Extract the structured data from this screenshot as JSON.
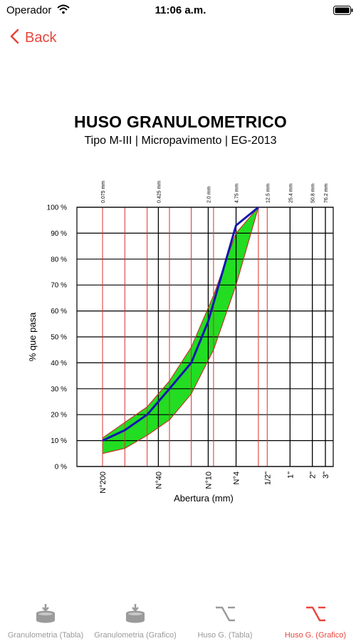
{
  "status_bar": {
    "carrier": "Operador",
    "time": "11:06 a.m."
  },
  "nav": {
    "back_label": "Back"
  },
  "header": {
    "title": "HUSO GRANULOMETRICO",
    "subtitle": "Tipo M-III | Micropavimento | EG-2013"
  },
  "chart_data": {
    "type": "area",
    "title": "HUSO GRANULOMETRICO",
    "subtitle": "Tipo M-III | Micropavimento | EG-2013",
    "xlabel": "Abertura (mm)",
    "ylabel": "% que pasa",
    "x_scale": "log",
    "xlim_mm": [
      0.075,
      76.2
    ],
    "ylim": [
      0,
      100
    ],
    "y_ticks": [
      "0 %",
      "10 %",
      "20 %",
      "30 %",
      "40 %",
      "50 %",
      "60 %",
      "70 %",
      "80 %",
      "90 %",
      "100 %"
    ],
    "y_tick_values": [
      0,
      10,
      20,
      30,
      40,
      50,
      60,
      70,
      80,
      90,
      100
    ],
    "sieve_lines": [
      {
        "mm": 0.075,
        "color": "red"
      },
      {
        "mm": 0.15,
        "color": "red"
      },
      {
        "mm": 0.3,
        "color": "red"
      },
      {
        "mm": 0.425,
        "color": "black"
      },
      {
        "mm": 0.6,
        "color": "red"
      },
      {
        "mm": 1.18,
        "color": "red"
      },
      {
        "mm": 2.0,
        "color": "black"
      },
      {
        "mm": 2.36,
        "color": "red"
      },
      {
        "mm": 4.75,
        "color": "black"
      },
      {
        "mm": 9.5,
        "color": "red"
      },
      {
        "mm": 12.5,
        "color": "red"
      },
      {
        "mm": 25.4,
        "color": "black"
      },
      {
        "mm": 50.8,
        "color": "black"
      },
      {
        "mm": 76.2,
        "color": "black"
      }
    ],
    "top_labels": [
      {
        "mm": 0.075,
        "text": "0.075 mm"
      },
      {
        "mm": 0.425,
        "text": "0.425 mm"
      },
      {
        "mm": 2.0,
        "text": "2.0 mm"
      },
      {
        "mm": 4.75,
        "text": "4.75 mm"
      },
      {
        "mm": 12.5,
        "text": "12.5 mm"
      },
      {
        "mm": 25.4,
        "text": "25.4 mm"
      },
      {
        "mm": 50.8,
        "text": "50.8 mm"
      },
      {
        "mm": 76.2,
        "text": "76.2 mm"
      }
    ],
    "bottom_labels": [
      {
        "mm": 0.075,
        "text": "N°200"
      },
      {
        "mm": 0.425,
        "text": "N°40"
      },
      {
        "mm": 2.0,
        "text": "N°10"
      },
      {
        "mm": 4.75,
        "text": "N°4"
      },
      {
        "mm": 12.5,
        "text": "1/2\""
      },
      {
        "mm": 25.4,
        "text": "1\""
      },
      {
        "mm": 50.8,
        "text": "2\""
      },
      {
        "mm": 76.2,
        "text": "3\""
      }
    ],
    "band_fill": "#22dd22",
    "band_stroke": "#c0392b",
    "series": [
      {
        "color": "#c0392b",
        "points": [
          [
            0.075,
            11
          ],
          [
            0.15,
            17
          ],
          [
            0.3,
            23
          ],
          [
            0.6,
            33
          ],
          [
            1.18,
            46
          ],
          [
            2.36,
            66
          ],
          [
            4.75,
            90
          ],
          [
            9.5,
            100
          ]
        ]
      },
      {
        "color": "#c0392b",
        "points": [
          [
            0.075,
            5
          ],
          [
            0.15,
            7
          ],
          [
            0.3,
            12
          ],
          [
            0.6,
            18
          ],
          [
            1.18,
            28
          ],
          [
            2.36,
            45
          ],
          [
            4.75,
            70
          ],
          [
            9.5,
            100
          ]
        ]
      },
      {
        "color": "#1515b0",
        "points": [
          [
            0.075,
            10
          ],
          [
            0.15,
            14
          ],
          [
            0.3,
            20
          ],
          [
            0.6,
            30
          ],
          [
            1.18,
            40
          ],
          [
            2.0,
            56
          ],
          [
            4.75,
            93
          ],
          [
            9.5,
            100
          ]
        ]
      }
    ]
  },
  "tabs": [
    {
      "label": "Granulometria (Tabla)",
      "icon": "sieve-stack-icon",
      "active": false
    },
    {
      "label": "Granulometria (Grafico)",
      "icon": "sieve-stack-icon",
      "active": false
    },
    {
      "label": "Huso G. (Tabla)",
      "icon": "curve-step-icon",
      "active": false
    },
    {
      "label": "Huso G. (Grafico)",
      "icon": "curve-step-icon",
      "active": true
    }
  ],
  "colors": {
    "accent": "#e8453c",
    "tab_inactive": "#9a9a9a",
    "grid": "#000000",
    "grid_red": "#d93030"
  }
}
